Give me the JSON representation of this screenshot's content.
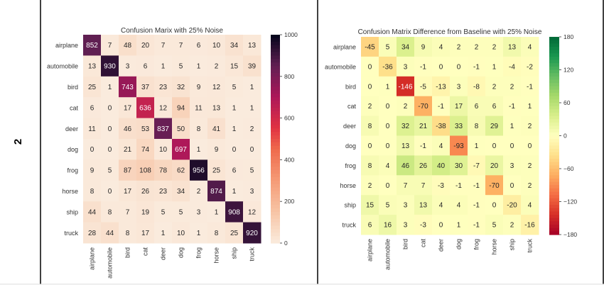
{
  "row_label": "2",
  "chart_data": [
    {
      "type": "heatmap",
      "title": "Confusion Marix with 25% Noise",
      "rows": [
        "airplane",
        "automobile",
        "bird",
        "cat",
        "deer",
        "dog",
        "frog",
        "horse",
        "ship",
        "truck"
      ],
      "cols": [
        "airplane",
        "automobile",
        "bird",
        "cat",
        "deer",
        "dog",
        "frog",
        "horse",
        "ship",
        "truck"
      ],
      "values": [
        [
          852,
          7,
          48,
          20,
          7,
          7,
          6,
          10,
          34,
          13
        ],
        [
          13,
          930,
          3,
          6,
          1,
          5,
          1,
          2,
          15,
          39
        ],
        [
          25,
          1,
          743,
          37,
          23,
          32,
          9,
          12,
          5,
          1
        ],
        [
          6,
          0,
          17,
          636,
          12,
          94,
          11,
          13,
          1,
          1
        ],
        [
          11,
          0,
          46,
          53,
          837,
          50,
          8,
          41,
          1,
          2
        ],
        [
          0,
          0,
          21,
          74,
          10,
          697,
          1,
          9,
          0,
          0
        ],
        [
          9,
          5,
          87,
          108,
          78,
          62,
          956,
          25,
          6,
          5
        ],
        [
          8,
          0,
          17,
          26,
          23,
          34,
          2,
          874,
          1,
          3
        ],
        [
          44,
          8,
          7,
          19,
          5,
          5,
          3,
          1,
          908,
          12
        ],
        [
          28,
          44,
          8,
          17,
          1,
          10,
          1,
          8,
          25,
          920
        ]
      ],
      "colormap": "rocket_r",
      "vmin": 0,
      "vmax": 1000,
      "colorbar_ticks": [
        0,
        200,
        400,
        600,
        800,
        1000
      ]
    },
    {
      "type": "heatmap",
      "title": "Confusion Matrix Difference from Baseline with 25% Noise",
      "rows": [
        "airplane",
        "automobile",
        "bird",
        "cat",
        "deer",
        "dog",
        "frog",
        "horse",
        "ship",
        "truck"
      ],
      "cols": [
        "airplane",
        "automobile",
        "bird",
        "cat",
        "deer",
        "dog",
        "frog",
        "horse",
        "ship",
        "truck"
      ],
      "values": [
        [
          -45,
          5,
          34,
          9,
          4,
          2,
          2,
          2,
          13,
          4
        ],
        [
          0,
          -36,
          3,
          -1,
          0,
          0,
          -1,
          1,
          -4,
          -2
        ],
        [
          0,
          1,
          -146,
          -5,
          -13,
          3,
          -8,
          2,
          2,
          -1
        ],
        [
          2,
          0,
          2,
          -70,
          -1,
          17,
          6,
          6,
          -1,
          1
        ],
        [
          8,
          0,
          32,
          21,
          -38,
          33,
          8,
          29,
          1,
          2
        ],
        [
          0,
          0,
          13,
          -1,
          4,
          -93,
          1,
          0,
          0,
          0
        ],
        [
          8,
          4,
          46,
          26,
          40,
          30,
          -7,
          20,
          3,
          2
        ],
        [
          2,
          0,
          7,
          7,
          -3,
          -1,
          -1,
          -70,
          0,
          2
        ],
        [
          15,
          5,
          3,
          13,
          4,
          4,
          -1,
          0,
          -20,
          4
        ],
        [
          6,
          16,
          3,
          -3,
          0,
          1,
          -1,
          5,
          2,
          -16
        ]
      ],
      "colormap": "RdYlGn",
      "vmin": -180,
      "vmax": 180,
      "colorbar_ticks": [
        -180,
        -120,
        -60,
        0,
        60,
        120,
        180
      ],
      "colorbar_tick_labels": [
        "−180",
        "−120",
        "−60",
        "0",
        "60",
        "120",
        "180"
      ]
    }
  ]
}
